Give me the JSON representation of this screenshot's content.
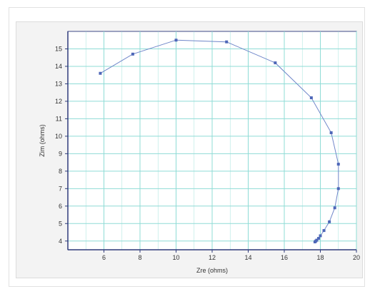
{
  "chart_data": {
    "type": "line",
    "title": "",
    "xlabel": "Zre (ohms)",
    "ylabel": "Zim (ohms)",
    "xlim": [
      4,
      20
    ],
    "ylim": [
      3.5,
      16
    ],
    "x_ticks": [
      6,
      8,
      10,
      12,
      14,
      16,
      18,
      20
    ],
    "y_ticks": [
      4,
      5,
      6,
      7,
      8,
      9,
      10,
      11,
      12,
      13,
      14,
      15
    ],
    "grid": true,
    "line_color": "#6f86c9",
    "marker_color": "#4e67b8",
    "grid_color": "#8fdcd6",
    "series": [
      {
        "x": [
          5.8,
          7.6,
          10.0,
          12.8,
          15.5,
          17.5,
          18.6,
          19.0,
          19.0,
          18.8,
          18.5,
          18.2,
          18.0,
          17.9,
          17.8,
          17.75,
          17.7
        ],
        "y": [
          13.6,
          14.7,
          15.5,
          15.4,
          14.2,
          12.2,
          10.2,
          8.4,
          7.0,
          5.9,
          5.1,
          4.6,
          4.3,
          4.15,
          4.05,
          4.0,
          3.95
        ]
      }
    ]
  }
}
